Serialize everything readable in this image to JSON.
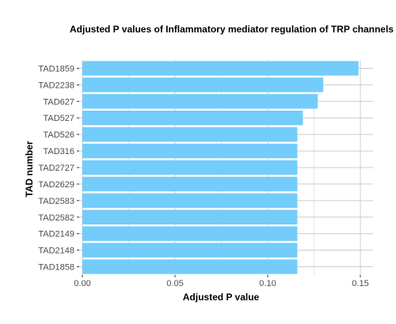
{
  "chart_data": {
    "type": "bar",
    "orientation": "horizontal",
    "title": "Adjusted P values of Inflammatory mediator regulation of TRP channels in diffe",
    "xlabel": "Adjusted P value",
    "ylabel": "TAD number",
    "xlim": [
      0,
      0.15
    ],
    "xticks": [
      "0.00",
      "0.05",
      "0.10",
      "0.15"
    ],
    "grid": true,
    "bar_color": "#74ccfa",
    "categories": [
      "TAD1859",
      "TAD2238",
      "TAD627",
      "TAD527",
      "TAD526",
      "TAD316",
      "TAD2727",
      "TAD2629",
      "TAD2583",
      "TAD2582",
      "TAD2149",
      "TAD2148",
      "TAD1858"
    ],
    "values": [
      0.149,
      0.13,
      0.127,
      0.119,
      0.116,
      0.116,
      0.116,
      0.116,
      0.116,
      0.116,
      0.116,
      0.116,
      0.116
    ]
  }
}
